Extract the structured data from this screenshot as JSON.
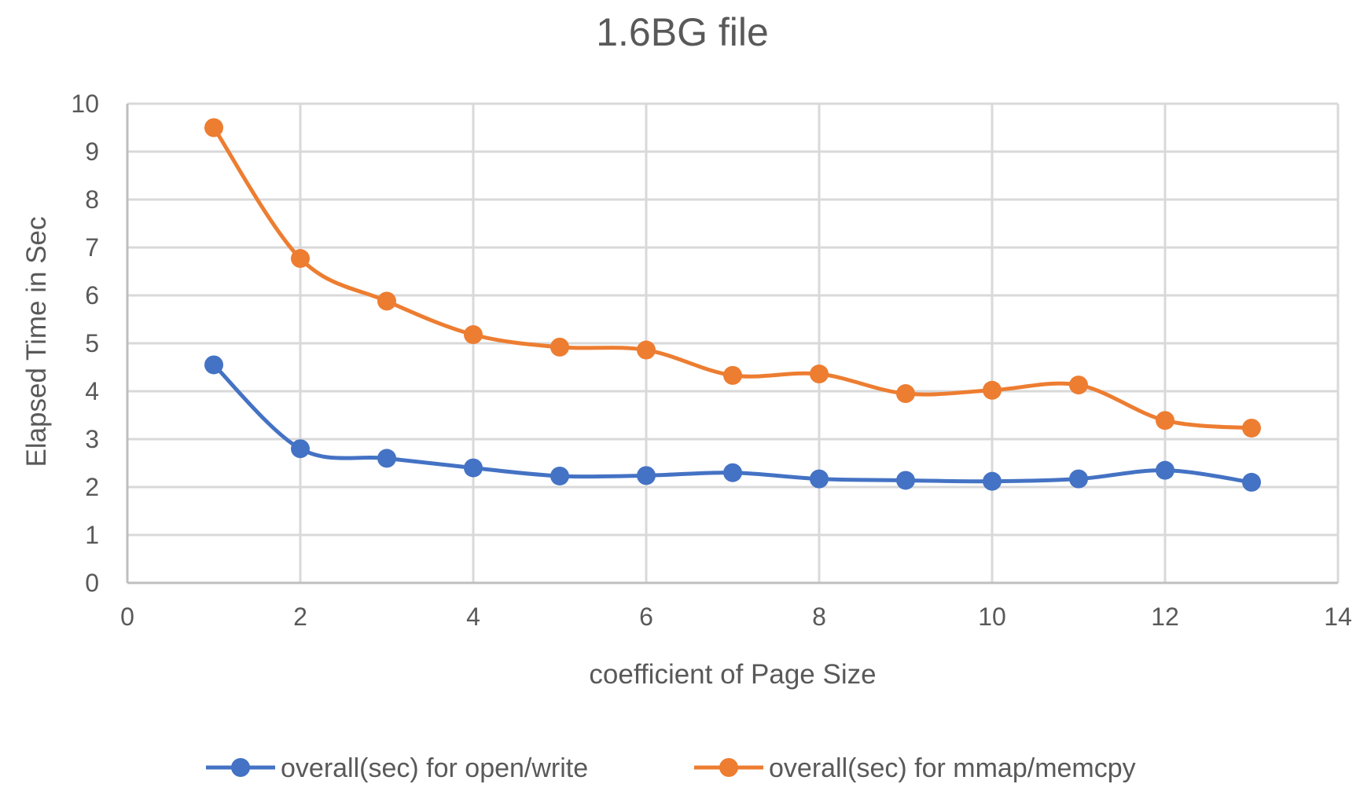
{
  "chart_data": {
    "type": "line",
    "title": "1.6BG file",
    "xlabel": "coefficient of Page Size",
    "ylabel": "Elapsed Time in Sec",
    "xlim": [
      0,
      14
    ],
    "ylim": [
      0,
      10
    ],
    "x_ticks": [
      0,
      2,
      4,
      6,
      8,
      10,
      12,
      14
    ],
    "y_ticks": [
      0,
      1,
      2,
      3,
      4,
      5,
      6,
      7,
      8,
      9,
      10
    ],
    "grid": true,
    "smooth": true,
    "legend_position": "bottom",
    "x": [
      1,
      2,
      3,
      4,
      5,
      6,
      7,
      8,
      9,
      10,
      11,
      12,
      13
    ],
    "series": [
      {
        "name": "overall(sec) for open/write",
        "color": "#4472c4",
        "values": [
          4.55,
          2.8,
          2.6,
          2.4,
          2.23,
          2.24,
          2.3,
          2.17,
          2.14,
          2.12,
          2.17,
          2.35,
          2.1
        ]
      },
      {
        "name": "overall(sec) for mmap/memcpy",
        "color": "#ed7d31",
        "values": [
          9.5,
          6.77,
          5.88,
          5.18,
          4.92,
          4.86,
          4.33,
          4.36,
          3.95,
          4.02,
          4.13,
          3.39,
          3.23
        ]
      }
    ]
  }
}
